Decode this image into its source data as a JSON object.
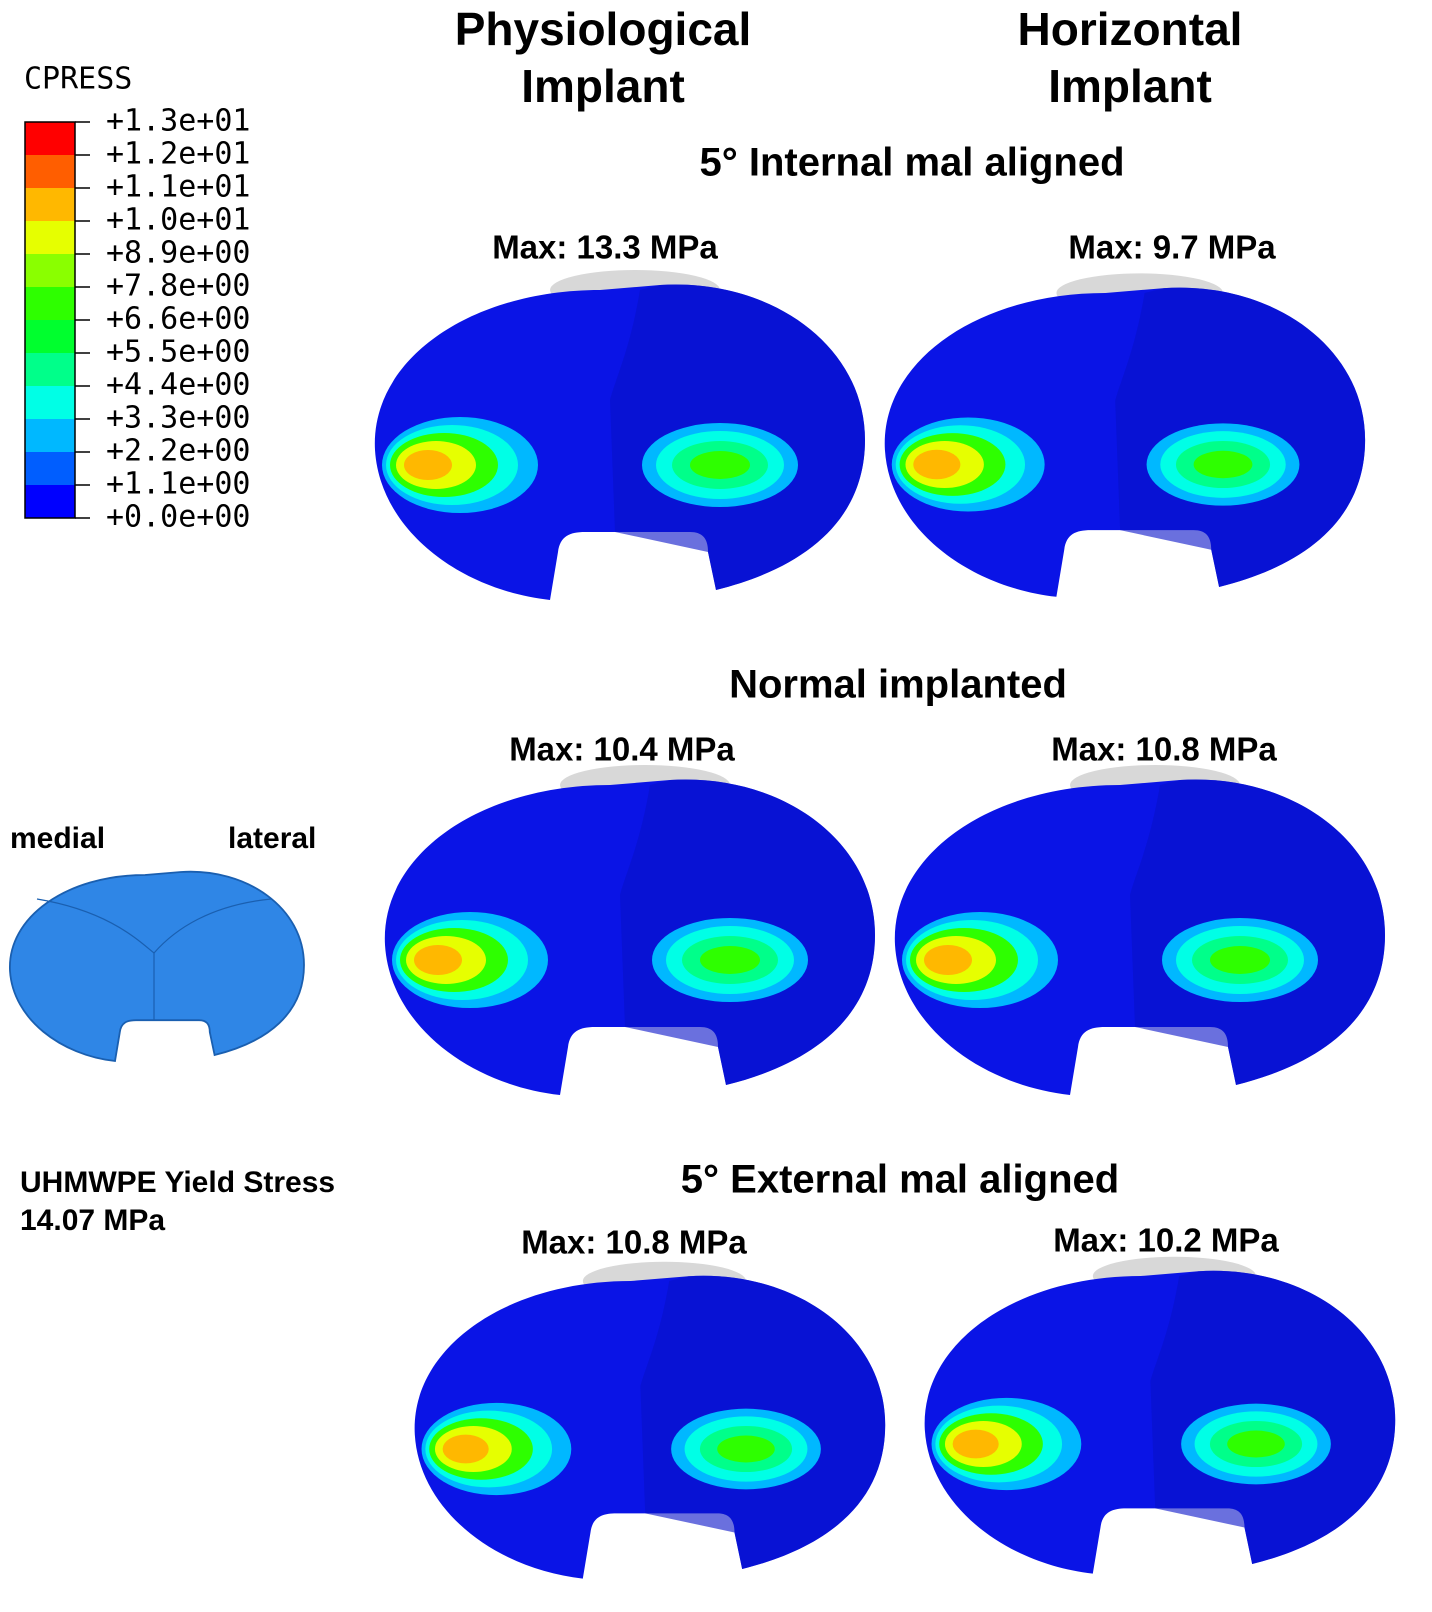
{
  "legend": {
    "title": "CPRESS",
    "labels": [
      "+1.3e+01",
      "+1.2e+01",
      "+1.1e+01",
      "+1.0e+01",
      "+8.9e+00",
      "+7.8e+00",
      "+6.6e+00",
      "+5.5e+00",
      "+4.4e+00",
      "+3.3e+00",
      "+2.2e+00",
      "+1.1e+00",
      "+0.0e+00"
    ],
    "colors": [
      "#ff0000",
      "#ff5e00",
      "#ffb800",
      "#e6ff00",
      "#8aff00",
      "#2eff00",
      "#00ff2e",
      "#00ff8a",
      "#00ffe6",
      "#00b8ff",
      "#005eff",
      "#0000ff"
    ]
  },
  "columns": [
    {
      "lines": [
        "Physiological",
        "Implant"
      ]
    },
    {
      "lines": [
        "Horizontal",
        "Implant"
      ]
    }
  ],
  "rows": [
    {
      "title": "5° Internal mal aligned",
      "panels": [
        {
          "max": "Max: 13.3 MPa"
        },
        {
          "max": "Max: 9.7 MPa"
        }
      ]
    },
    {
      "title": "Normal implanted",
      "panels": [
        {
          "max": "Max: 10.4 MPa"
        },
        {
          "max": "Max: 10.8 MPa"
        }
      ]
    },
    {
      "title": "5° External mal aligned",
      "panels": [
        {
          "max": "Max: 10.8 MPa"
        },
        {
          "max": "Max: 10.2 MPa"
        }
      ]
    }
  ],
  "inset": {
    "left": "medial",
    "right": "lateral"
  },
  "note": [
    "UHMWPE Yield Stress",
    "14.07 MPa"
  ]
}
